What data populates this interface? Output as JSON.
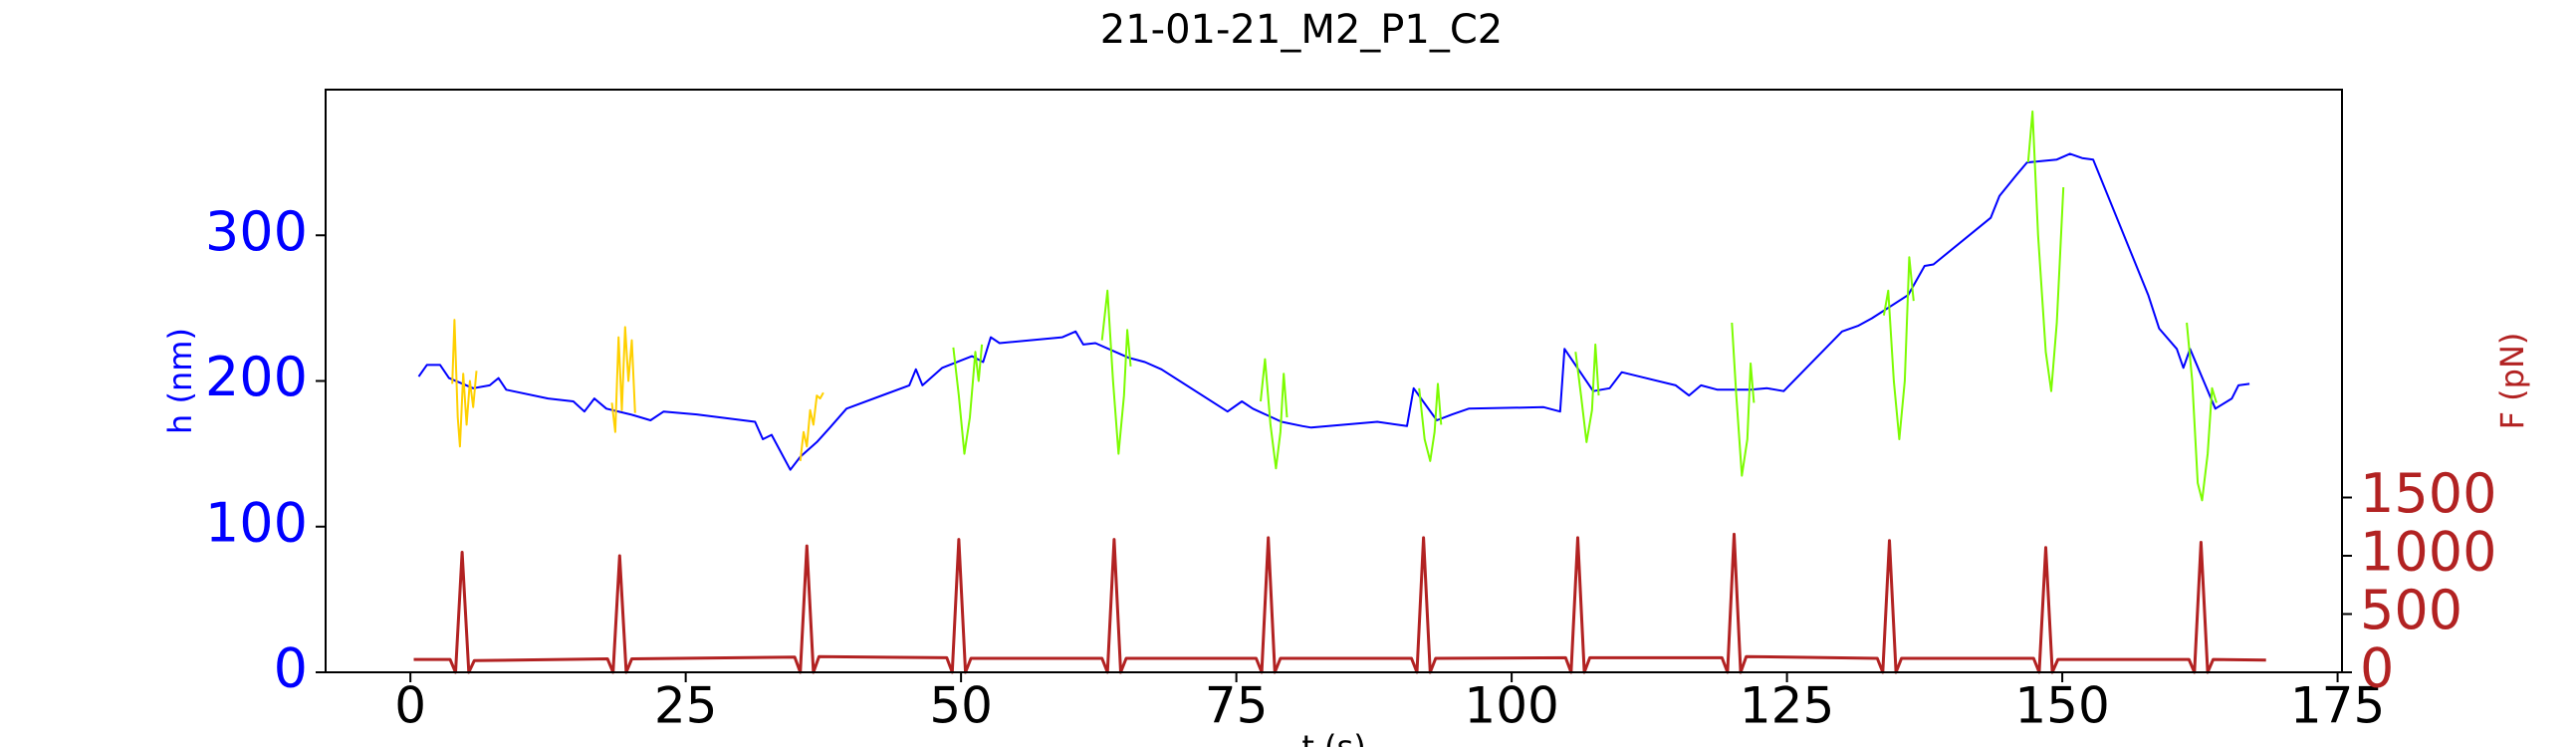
{
  "chart_data": {
    "type": "line",
    "title": "21-01-21_M2_P1_C2",
    "xlabel": "t (s)",
    "ylabel": "h (nm)",
    "y2label": "F (pN)",
    "ylabel_color": "#0000ff",
    "y2label_color": "#b22222",
    "xlim": [
      -7.7,
      175.4
    ],
    "ylim": [
      0,
      400
    ],
    "y2lim": [
      0,
      5000
    ],
    "xticks": [
      0,
      25,
      50,
      75,
      100,
      125,
      150,
      175
    ],
    "yticks": [
      0,
      100,
      200,
      300
    ],
    "y2ticks": [
      0,
      500,
      1000,
      1500
    ],
    "series": [
      {
        "color": "#0000ff",
        "x": [
          0.75,
          1.5,
          2.7,
          3.5,
          5.7,
          7.2,
          8,
          8.7,
          12.5,
          14.8,
          15.8,
          16.7,
          17.8,
          20,
          21.8,
          23,
          26,
          31.3,
          32,
          32.8,
          34.5,
          35.4,
          36.9,
          38.1,
          39.6,
          45.3,
          45.9,
          46.5,
          48.3,
          51,
          52,
          52.7,
          53.5,
          59.2,
          60.4,
          61.1,
          62.2,
          65.2,
          66.7,
          68.2,
          74.2,
          75.5,
          76.5,
          79.1,
          81,
          81.8,
          87.8,
          90.5,
          91.1,
          93.2,
          94.6,
          96.1,
          102.9,
          104.4,
          104.8,
          107.4,
          108.9,
          110,
          114.9,
          116.1,
          117.2,
          118.7,
          121.7,
          123.2,
          124.7,
          130,
          131.5,
          132.7,
          136,
          137.5,
          138.3,
          143.5,
          144.3,
          145.8,
          146.8,
          149.5,
          150.7,
          151.8,
          152.8,
          157.8,
          158.8,
          160.4,
          161,
          161.6,
          163.9,
          165.4,
          166,
          167
        ],
        "values": [
          203,
          211,
          211,
          202,
          195,
          197,
          202,
          194,
          188,
          186,
          179,
          188,
          181,
          177,
          173,
          179,
          177,
          172,
          160,
          163,
          139,
          148,
          158,
          168,
          181,
          197,
          208,
          197,
          209,
          217,
          213,
          230,
          226,
          230,
          234,
          225,
          226,
          216,
          213,
          208,
          179,
          186,
          181,
          172,
          169,
          168,
          172,
          169,
          195,
          173,
          177,
          181,
          182,
          179,
          222,
          193,
          195,
          206,
          197,
          190,
          197,
          194,
          194,
          195,
          193,
          234,
          238,
          243,
          259,
          279,
          280,
          312,
          327,
          341,
          350,
          352,
          356,
          353,
          352,
          259,
          236,
          222,
          209,
          222,
          181,
          188,
          197,
          198
        ]
      },
      {
        "color": "#ffd000",
        "x": [
          3.8,
          4.0,
          4.3,
          4.5,
          4.8,
          5.1,
          5.4,
          5.7,
          6.0,
          null,
          18.3,
          18.6,
          18.9,
          19.2,
          19.5,
          19.8,
          20.1,
          20.4,
          null,
          35.4,
          35.7,
          36,
          36.3,
          36.6,
          36.9,
          37.2,
          37.5
        ],
        "values": [
          198,
          242,
          175,
          155,
          205,
          170,
          200,
          182,
          207,
          null,
          185,
          165,
          230,
          180,
          237,
          200,
          228,
          178,
          null,
          145,
          165,
          155,
          180,
          170,
          190,
          188,
          192
        ]
      },
      {
        "color": "#7cfc00",
        "x": [
          49.3,
          49.8,
          50.3,
          50.8,
          51.3,
          51.6,
          51.9,
          null,
          62.8,
          63.3,
          63.8,
          64.3,
          64.8,
          65.1,
          65.4,
          null,
          77.2,
          77.6,
          78.1,
          78.6,
          79.0,
          79.3,
          79.6,
          null,
          91.6,
          92.1,
          92.6,
          93.0,
          93.3,
          93.6,
          null,
          105.8,
          106.3,
          106.8,
          107.3,
          107.6,
          107.9,
          null,
          120,
          120.4,
          120.9,
          121.4,
          121.7,
          122,
          null,
          133.8,
          134.2,
          134.7,
          135.2,
          135.7,
          136.1,
          136.5,
          null,
          146.9,
          147.3,
          147.8,
          148.5,
          149.0,
          149.5,
          150.1,
          null,
          161.3,
          161.8,
          162.3,
          162.7,
          163.2,
          163.6,
          164
        ],
        "values": [
          223,
          190,
          150,
          175,
          220,
          200,
          225,
          null,
          228,
          262,
          200,
          150,
          190,
          235,
          210,
          null,
          186,
          215,
          170,
          140,
          165,
          205,
          175,
          null,
          195,
          160,
          145,
          165,
          198,
          170,
          null,
          220,
          190,
          158,
          180,
          225,
          190,
          null,
          240,
          190,
          135,
          160,
          212,
          185,
          null,
          245,
          262,
          200,
          160,
          200,
          285,
          255,
          null,
          350,
          385,
          300,
          220,
          193,
          240,
          333,
          null,
          240,
          200,
          130,
          118,
          150,
          195,
          185
        ]
      },
      {
        "color": "#b22222",
        "axis": "y2",
        "x": [
          0.3,
          3.6,
          4.1,
          4.7,
          5.3,
          5.8,
          17.9,
          18.4,
          19,
          19.6,
          20.1,
          34.9,
          35.4,
          36,
          36.6,
          37.1,
          48.7,
          49.2,
          49.8,
          50.4,
          50.9,
          62.8,
          63.3,
          63.9,
          64.5,
          65,
          76.8,
          77.3,
          77.9,
          78.5,
          79,
          90.9,
          91.4,
          92,
          92.6,
          93.1,
          104.9,
          105.4,
          106,
          106.6,
          107.1,
          119.1,
          119.6,
          120.2,
          120.8,
          121.3,
          133.2,
          133.7,
          134.3,
          134.9,
          135.4,
          147.4,
          147.9,
          148.5,
          149.1,
          149.6,
          161.5,
          162,
          162.6,
          163.2,
          163.7,
          168.5
        ],
        "values": [
          110,
          110,
          0,
          1030,
          0,
          100,
          115,
          0,
          1000,
          0,
          115,
          130,
          0,
          1085,
          0,
          135,
          125,
          0,
          1140,
          0,
          120,
          120,
          0,
          1140,
          0,
          120,
          120,
          0,
          1155,
          0,
          120,
          120,
          0,
          1155,
          0,
          120,
          125,
          0,
          1155,
          0,
          125,
          125,
          0,
          1185,
          0,
          135,
          120,
          0,
          1130,
          0,
          120,
          120,
          0,
          1070,
          0,
          110,
          110,
          0,
          1115,
          0,
          110,
          105
        ]
      }
    ]
  }
}
